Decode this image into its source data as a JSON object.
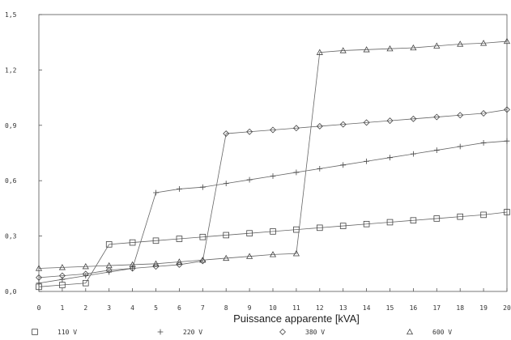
{
  "chart_data": {
    "type": "line",
    "title": "",
    "xlabel": "Puissance apparente [kVA]",
    "ylabel": "",
    "xlim": [
      0,
      20
    ],
    "ylim": [
      0,
      1.5
    ],
    "x_ticks": [
      "0",
      "1",
      "2",
      "3",
      "4",
      "5",
      "6",
      "7",
      "8",
      "9",
      "10",
      "11",
      "12",
      "13",
      "14",
      "15",
      "16",
      "17",
      "18",
      "19",
      "20"
    ],
    "y_ticks": [
      "0,0",
      "0,3",
      "0,6",
      "0,9",
      "1,2",
      "1,5"
    ],
    "y_tick_values": [
      0,
      0.3,
      0.6,
      0.9,
      1.2,
      1.5
    ],
    "grid": false,
    "legend_position": "bottom",
    "x": [
      0,
      1,
      2,
      3,
      4,
      5,
      6,
      7,
      8,
      9,
      10,
      11,
      12,
      13,
      14,
      15,
      16,
      17,
      18,
      19,
      20
    ],
    "series": [
      {
        "name": "110 V",
        "marker": "square",
        "values": [
          0.025,
          0.035,
          0.045,
          0.255,
          0.265,
          0.275,
          0.285,
          0.295,
          0.305,
          0.315,
          0.325,
          0.335,
          0.345,
          0.355,
          0.365,
          0.375,
          0.385,
          0.395,
          0.405,
          0.415,
          0.43
        ]
      },
      {
        "name": "220 V",
        "marker": "plus",
        "values": [
          0.045,
          0.065,
          0.085,
          0.105,
          0.125,
          0.535,
          0.555,
          0.565,
          0.585,
          0.605,
          0.625,
          0.645,
          0.665,
          0.685,
          0.705,
          0.725,
          0.745,
          0.765,
          0.785,
          0.805,
          0.815
        ]
      },
      {
        "name": "380 V",
        "marker": "diamond",
        "values": [
          0.075,
          0.085,
          0.095,
          0.115,
          0.125,
          0.135,
          0.145,
          0.165,
          0.855,
          0.865,
          0.875,
          0.885,
          0.895,
          0.905,
          0.915,
          0.925,
          0.935,
          0.945,
          0.955,
          0.965,
          0.985
        ]
      },
      {
        "name": "600 V",
        "marker": "triangle",
        "values": [
          0.125,
          0.13,
          0.135,
          0.14,
          0.145,
          0.15,
          0.16,
          0.17,
          0.18,
          0.19,
          0.2,
          0.205,
          1.295,
          1.305,
          1.31,
          1.315,
          1.32,
          1.33,
          1.34,
          1.345,
          1.355
        ]
      }
    ]
  }
}
